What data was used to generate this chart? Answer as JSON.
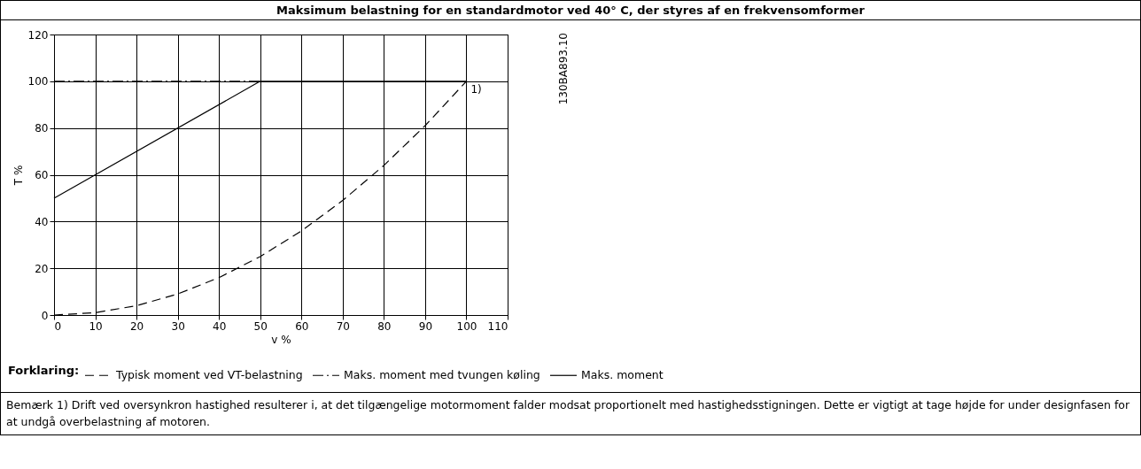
{
  "chart_data": {
    "type": "line",
    "title": "Maksimum belastning for en standardmotor ved 40° C, der styres af en frekvensomformer",
    "xlabel": "v %",
    "ylabel": "T %",
    "legend_title": "Forklaring:",
    "xlim": [
      0,
      110
    ],
    "xticks": [
      0,
      10,
      20,
      30,
      40,
      50,
      60,
      70,
      80,
      90,
      100,
      110
    ],
    "ylim": [
      0,
      120
    ],
    "yticks": [
      0,
      20,
      40,
      60,
      80,
      100,
      120
    ],
    "grid": true,
    "legend": "bottom",
    "series": [
      {
        "name": "Typisk moment ved VT-belastning",
        "color": "#000000",
        "line_style": "dashed",
        "x": [
          0,
          10,
          20,
          30,
          40,
          50,
          60,
          70,
          80,
          90,
          100
        ],
        "values": [
          0,
          1,
          4,
          9,
          16,
          25,
          36,
          49,
          64,
          81,
          100
        ]
      },
      {
        "name": "Maks. moment med tvungen køling",
        "color": "#000000",
        "line_style": "dashdot",
        "x": [
          0,
          50
        ],
        "values": [
          100,
          100
        ]
      },
      {
        "name": "Maks. moment",
        "color": "#000000",
        "line_style": "solid",
        "x": [
          0,
          50,
          100
        ],
        "values": [
          50,
          100,
          100
        ]
      }
    ],
    "annotations": [
      {
        "text": "1)",
        "x": 100,
        "y": 100
      },
      "130BA893.10",
      "Bemærk 1) Drift ved oversynkron hastighed resulterer i, at det tilgængelige motormoment falder modsat proportionelt med hastighedsstigningen. Dette er vigtigt at tage højde for under designfasen for at undgå overbelastning af motoren."
    ]
  }
}
